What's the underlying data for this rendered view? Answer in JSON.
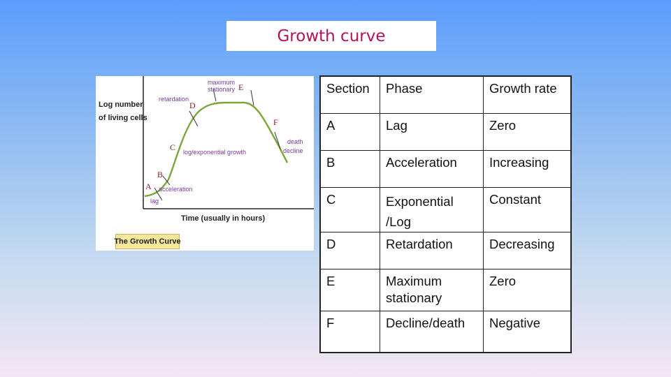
{
  "title": "Growth curve",
  "figure": {
    "y_label_line1": "Log number",
    "y_label_line2": "of living cells",
    "x_label": "Time (usually in hours)",
    "caption": "The Growth Curve",
    "labels": {
      "maximum": "maximum",
      "stationary": "stationary",
      "retardation": "retardation",
      "log_growth": "log/exponential growth",
      "death": "death",
      "decline": "decline",
      "acceleration": "acceleration",
      "lag": "lag"
    },
    "letters": {
      "A": "A",
      "B": "B",
      "C": "C",
      "D": "D",
      "E": "E",
      "F": "F"
    },
    "colors": {
      "curve": "#7aa63a",
      "axis": "#222222",
      "label": "#7a3aa0",
      "letter": "#8a1a1a"
    }
  },
  "table": {
    "header": [
      "Section",
      "Phase",
      "Growth rate"
    ],
    "rows": [
      {
        "section": "A",
        "phase": "Lag",
        "rate": "Zero"
      },
      {
        "section": "B",
        "phase": "Acceleration",
        "rate": "Increasing"
      },
      {
        "section": "C",
        "phase": "Exponential /Log",
        "rate": "Constant"
      },
      {
        "section": "D",
        "phase": "Retardation",
        "rate": "Decreasing"
      },
      {
        "section": "E",
        "phase": "Maximum stationary",
        "rate": "Zero"
      },
      {
        "section": "F",
        "phase": "Decline/death",
        "rate": "Negative"
      }
    ]
  }
}
